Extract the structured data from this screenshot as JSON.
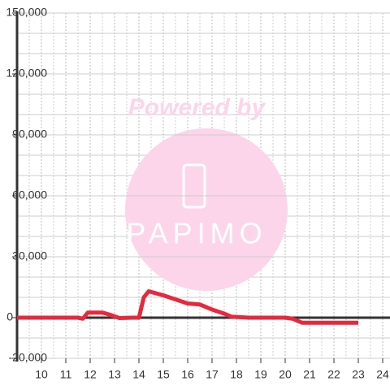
{
  "chart_data": {
    "type": "line",
    "watermark": {
      "top": "Powered by",
      "bottom": "PAPIMO"
    },
    "x": [
      9,
      11.5,
      11.7,
      11.9,
      12.5,
      12.8,
      13.2,
      13.7,
      14.0,
      14.2,
      14.4,
      15,
      15.5,
      16,
      16.5,
      17,
      17.5,
      17.8,
      18.5,
      19,
      20,
      20.3,
      20.7,
      21,
      23
    ],
    "series": [
      {
        "color": "#e8283c",
        "values": [
          0,
          0,
          -500,
          2500,
          2500,
          1500,
          -200,
          0,
          0,
          10000,
          13000,
          11000,
          9000,
          7000,
          6500,
          4000,
          2000,
          500,
          0,
          0,
          0,
          -500,
          -2500,
          -2500,
          -2500
        ]
      }
    ],
    "xlim": [
      9,
      24.3
    ],
    "xticks": [
      10,
      11,
      12,
      13,
      14,
      15,
      16,
      17,
      18,
      19,
      20,
      21,
      22,
      23,
      24
    ],
    "minor_xticks": [
      9.5,
      10.5,
      11.5,
      12.5,
      13.5,
      14.5,
      15.5,
      16.5,
      17.5,
      18.5,
      19.5,
      20.5,
      21.5,
      22.5,
      23.5
    ],
    "ylim": [
      -20000,
      150000
    ],
    "yticks": [
      {
        "value": 150000,
        "label": "150,000"
      },
      {
        "value": 120000,
        "label": "120,000"
      },
      {
        "value": 90000,
        "label": "90,000"
      },
      {
        "value": 60000,
        "label": "60,000"
      },
      {
        "value": 30000,
        "label": "30,000"
      },
      0,
      {
        "value": -20000,
        "label": "-20,000"
      }
    ],
    "minor_yticks": [
      140000,
      130000,
      110000,
      100000,
      80000,
      70000,
      50000,
      40000,
      20000,
      10000,
      -10000
    ],
    "grid": true
  }
}
